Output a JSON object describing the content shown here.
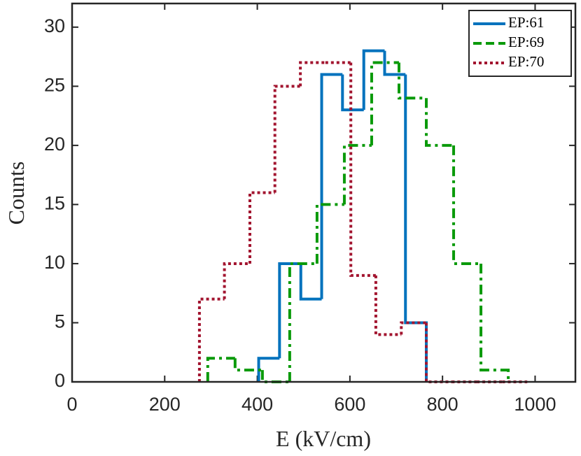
{
  "chart_data": {
    "type": "histogram",
    "xlabel": "E (kV/cm)",
    "ylabel": "Counts",
    "xlim": [
      0,
      1087
    ],
    "ylim": [
      0,
      32
    ],
    "xticks": [
      0,
      200,
      400,
      600,
      800,
      1000
    ],
    "yticks": [
      0,
      5,
      10,
      15,
      20,
      25,
      30
    ],
    "legend": "upper right",
    "series": [
      {
        "name": "EP:61",
        "color": "#0072bd",
        "style": "solid",
        "bins": [
          403,
          448,
          494,
          539,
          584,
          630,
          675,
          720,
          765
        ],
        "values": [
          2,
          10,
          7,
          26,
          23,
          28,
          26,
          5
        ]
      },
      {
        "name": "EP:69",
        "color": "#0a9a0a",
        "style": "dashdot",
        "bins": [
          293,
          352,
          411,
          470,
          529,
          588,
          647,
          706,
          765,
          824,
          883,
          942
        ],
        "values": [
          2,
          1,
          0,
          10,
          15,
          20,
          27,
          24,
          20,
          10,
          1
        ]
      },
      {
        "name": "EP:70",
        "color": "#a2142f",
        "style": "dotted",
        "bins": [
          275,
          329,
          384,
          438,
          493,
          547,
          602,
          656,
          711,
          765,
          820,
          874,
          929,
          983
        ],
        "values": [
          7,
          10,
          16,
          25,
          27,
          27,
          9,
          4,
          5,
          0,
          0,
          0,
          0
        ]
      }
    ]
  }
}
